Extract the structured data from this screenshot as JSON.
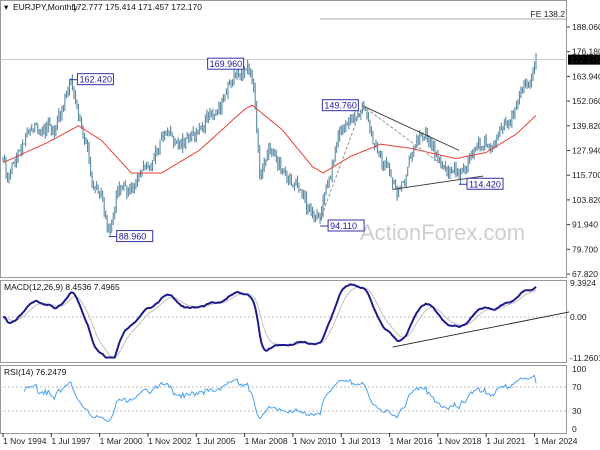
{
  "chart_data": {
    "type": "ohlc",
    "title": "EURJPY,Monthly",
    "ohlc_readout": "172.777 175.414 171.457 172.170",
    "start_month": "Nov 1994",
    "price_axis": {
      "min": 67.82,
      "max": 188.06,
      "ticks": [
        "188.060",
        "176.180",
        "163.940",
        "152.060",
        "139.820",
        "127.940",
        "115.700",
        "103.820",
        "91.940",
        "79.700",
        "67.820"
      ]
    },
    "x_ticks": [
      "1 Nov 1994",
      "1 Jul 1997",
      "1 Mar 2000",
      "1 Nov 2002",
      "1 Jul 2005",
      "1 Mar 2008",
      "1 Nov 2010",
      "1 Jul 2013",
      "1 Mar 2016",
      "1 Nov 2018",
      "1 Jul 2021",
      "1 Mar 2024"
    ],
    "x_tick_months": [
      0,
      32,
      64,
      96,
      128,
      160,
      192,
      224,
      256,
      288,
      320,
      352
    ],
    "price_path": [
      [
        0,
        124
      ],
      [
        3,
        113
      ],
      [
        10,
        128
      ],
      [
        20,
        138
      ],
      [
        28,
        140
      ],
      [
        34,
        135
      ],
      [
        44,
        162.42
      ],
      [
        50,
        145
      ],
      [
        56,
        130
      ],
      [
        60,
        110
      ],
      [
        66,
        105
      ],
      [
        70,
        88.96
      ],
      [
        76,
        108
      ],
      [
        84,
        110
      ],
      [
        90,
        115
      ],
      [
        96,
        120
      ],
      [
        104,
        133
      ],
      [
        112,
        135
      ],
      [
        120,
        130
      ],
      [
        130,
        140
      ],
      [
        140,
        145
      ],
      [
        150,
        160
      ],
      [
        158,
        166
      ],
      [
        162,
        169.96
      ],
      [
        166,
        158
      ],
      [
        170,
        115
      ],
      [
        176,
        130
      ],
      [
        182,
        120
      ],
      [
        190,
        115
      ],
      [
        198,
        105
      ],
      [
        204,
        100
      ],
      [
        208,
        96
      ],
      [
        210,
        94.11
      ],
      [
        216,
        115
      ],
      [
        222,
        135
      ],
      [
        228,
        140
      ],
      [
        232,
        145
      ],
      [
        238,
        149.76
      ],
      [
        244,
        135
      ],
      [
        250,
        125
      ],
      [
        258,
        112
      ],
      [
        262,
        109
      ],
      [
        268,
        120
      ],
      [
        276,
        135
      ],
      [
        280,
        137
      ],
      [
        286,
        125
      ],
      [
        292,
        120
      ],
      [
        298,
        118
      ],
      [
        302,
        114.42
      ],
      [
        310,
        127
      ],
      [
        318,
        130
      ],
      [
        326,
        132
      ],
      [
        334,
        140
      ],
      [
        342,
        155
      ],
      [
        348,
        160
      ],
      [
        352,
        170
      ],
      [
        353,
        172.17
      ]
    ],
    "moving_average": {
      "color": "#e8413a",
      "path": [
        [
          0,
          122
        ],
        [
          30,
          132
        ],
        [
          50,
          140
        ],
        [
          65,
          133
        ],
        [
          85,
          117
        ],
        [
          105,
          117
        ],
        [
          130,
          128
        ],
        [
          160,
          148
        ],
        [
          165,
          150
        ],
        [
          185,
          138
        ],
        [
          205,
          120
        ],
        [
          212,
          117
        ],
        [
          230,
          125
        ],
        [
          250,
          131
        ],
        [
          270,
          129
        ],
        [
          300,
          124
        ],
        [
          320,
          127
        ],
        [
          340,
          136
        ],
        [
          353,
          145
        ]
      ]
    },
    "current_price": "172.170",
    "fe_level": {
      "label": "FE 138.2",
      "value": 192.3
    },
    "swing_labels": [
      {
        "text": "162.420",
        "month": 44,
        "price": 162.42
      },
      {
        "text": "88.960",
        "month": 70,
        "price": 88.96
      },
      {
        "text": "169.960",
        "month": 162,
        "price": 169.96
      },
      {
        "text": "94.110",
        "month": 210,
        "price": 94.11
      },
      {
        "text": "149.760",
        "month": 238,
        "price": 149.76
      },
      {
        "text": "114.420",
        "month": 302,
        "price": 114.42
      }
    ],
    "trendlines": [
      {
        "style": "solid",
        "points": [
          [
            238,
            149.76
          ],
          [
            302,
            128
          ]
        ]
      },
      {
        "style": "solid",
        "points": [
          [
            258,
            109
          ],
          [
            318,
            115.5
          ]
        ]
      },
      {
        "style": "dashed",
        "points": [
          [
            210,
            94.11
          ],
          [
            238,
            149.76
          ]
        ]
      },
      {
        "style": "dashed",
        "points": [
          [
            238,
            149.76
          ],
          [
            300,
            116
          ]
        ]
      }
    ],
    "macd": {
      "label": "MACD(12,26,9) 8.4536 7.4965",
      "range": [
        -11.2601,
        9.3924
      ],
      "ticks": [
        "9.3924",
        "0.00",
        "-11.2601"
      ],
      "trendline": [
        [
          258,
          -8.3
        ],
        [
          375,
          1.4
        ]
      ]
    },
    "rsi": {
      "label": "RSI(14) 76.2479",
      "range": [
        0,
        100
      ],
      "ticks": [
        "100",
        "70",
        "30",
        "0"
      ],
      "levels": [
        70,
        30
      ]
    },
    "watermark": "ActionForex.com",
    "colors": {
      "bars": "#5b8aa3",
      "macd": "#1c1c8c",
      "signal": "#c0c0c0",
      "rsi": "#4aa0f0"
    }
  }
}
